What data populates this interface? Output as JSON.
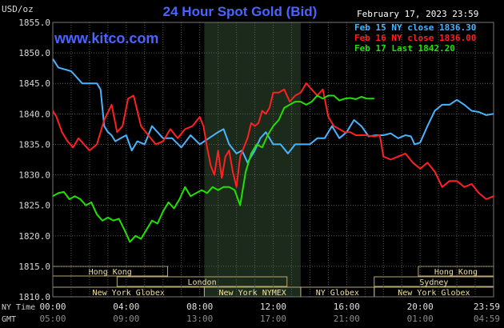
{
  "header": {
    "title": "24 Hour Spot Gold (Bid)",
    "url": "www.kitco.com",
    "unit": "USD/oz",
    "date": "February 17, 2023 23:59"
  },
  "legend": [
    {
      "label": "Feb 15 NY close 1836.30",
      "color": "#46b4ff"
    },
    {
      "label": "Feb 16 NY close 1836.00",
      "color": "#ff2020"
    },
    {
      "label": "Feb 17 Last 1842.20",
      "color": "#22e000"
    }
  ],
  "axis_rows": {
    "ny_time": "NY Time",
    "gmt": "GMT"
  },
  "sessions": [
    {
      "label": "Hong Kong",
      "start": 0,
      "end": 6.25,
      "row": 0
    },
    {
      "label": "Hong Kong",
      "start": 19.9,
      "end": 24,
      "row": 0
    },
    {
      "label": "London",
      "start": 3.5,
      "end": 12.75,
      "row": 1
    },
    {
      "label": "Sydney",
      "start": 17.5,
      "end": 24,
      "row": 1
    },
    {
      "label": "New York Globex",
      "start": 0,
      "end": 8.25,
      "row": 2
    },
    {
      "label": "New York NYMEX",
      "start": 8.25,
      "end": 13.5,
      "row": 2
    },
    {
      "label": "NY Globex",
      "start": 13.5,
      "end": 17.5,
      "row": 2
    },
    {
      "label": "New York Globex",
      "start": 17.5,
      "end": 24,
      "row": 2
    }
  ],
  "chart_data": {
    "type": "line",
    "ylim": [
      1810,
      1855
    ],
    "xlim": [
      0,
      24
    ],
    "yticks": [
      "1855.0",
      "1850.0",
      "1845.0",
      "1840.0",
      "1835.0",
      "1830.0",
      "1825.0",
      "1820.0",
      "1815.0",
      "1810.0"
    ],
    "xticks_ny": [
      "00:00",
      "04:00",
      "08:00",
      "12:00",
      "16:00",
      "20:00",
      "23:59"
    ],
    "xticks_gmt": [
      "05:00",
      "09:00",
      "13:00",
      "17:00",
      "21:00",
      "01:00",
      "04:59"
    ],
    "grid": true,
    "highlight_range": [
      8.25,
      13.5
    ],
    "legend_position": "top-right",
    "series": [
      {
        "name": "Feb 15 NY close 1836.30",
        "color": "#46b4ff",
        "x": [
          0,
          0.3,
          1,
          1.6,
          2.4,
          2.6,
          2.8,
          3,
          3.2,
          3.4,
          3.7,
          4,
          4.3,
          4.6,
          5,
          5.4,
          6,
          6.5,
          7,
          7.5,
          8,
          8.5,
          9,
          9.3,
          9.6,
          10,
          10.3,
          10.6,
          11,
          11.3,
          11.6,
          12,
          12.4,
          12.8,
          13.2,
          13.6,
          14,
          14.4,
          14.8,
          15.2,
          15.6,
          16,
          16.4,
          16.8,
          17.2,
          17.6,
          18,
          18.4,
          18.8,
          19.2,
          19.5,
          19.7,
          20,
          20.4,
          20.8,
          21.2,
          21.6,
          22,
          22.4,
          22.8,
          23.2,
          23.6,
          24
        ],
        "y": [
          1849,
          1847.6,
          1847,
          1845,
          1845,
          1844,
          1838,
          1837,
          1836.5,
          1835.5,
          1836,
          1836.5,
          1834,
          1835.5,
          1835,
          1838,
          1836,
          1836,
          1834.5,
          1836.5,
          1835,
          1836,
          1837,
          1837.5,
          1835,
          1833.5,
          1834,
          1832,
          1834,
          1836,
          1837,
          1835,
          1835,
          1833.5,
          1835,
          1835,
          1835,
          1836,
          1836,
          1838,
          1836,
          1837,
          1839,
          1838,
          1836.3,
          1836.5,
          1836.5,
          1836.8,
          1836,
          1836.5,
          1836.3,
          1835,
          1835.3,
          1838,
          1840.5,
          1841.5,
          1841.5,
          1842.3,
          1841.5,
          1840.5,
          1840.3,
          1839.8,
          1840
        ]
      },
      {
        "name": "Feb 16 NY close 1836.00",
        "color": "#ff2020",
        "x": [
          0,
          0.2,
          0.5,
          0.8,
          1.1,
          1.4,
          1.7,
          2,
          2.4,
          2.8,
          3.2,
          3.5,
          3.8,
          4.1,
          4.4,
          4.8,
          5.2,
          5.6,
          6,
          6.4,
          6.8,
          7.2,
          7.6,
          8,
          8.2,
          8.4,
          8.6,
          8.8,
          9,
          9.2,
          9.4,
          9.6,
          9.8,
          10,
          10.2,
          10.4,
          10.6,
          10.8,
          11,
          11.2,
          11.4,
          11.6,
          11.8,
          12,
          12.3,
          12.6,
          12.9,
          13.2,
          13.5,
          13.8,
          14.1,
          14.4,
          14.7,
          15,
          15.3,
          15.6,
          15.9,
          16.2,
          16.5,
          17,
          17.5,
          17.8,
          18,
          18.4,
          18.8,
          19.2,
          19.6,
          20,
          20.4,
          20.8,
          21.2,
          21.6,
          22,
          22.4,
          22.8,
          23.2,
          23.6,
          24
        ],
        "y": [
          1840.5,
          1839.5,
          1837,
          1835.5,
          1834.5,
          1836,
          1835,
          1834,
          1835,
          1839,
          1841.5,
          1837,
          1838,
          1842.5,
          1843,
          1838,
          1836.5,
          1835,
          1835.5,
          1837.5,
          1836,
          1837.5,
          1838,
          1839.5,
          1838,
          1834.5,
          1831.5,
          1830,
          1834,
          1829.5,
          1833,
          1834,
          1830.5,
          1828,
          1833,
          1834.5,
          1836,
          1838.5,
          1838,
          1838.5,
          1840.5,
          1840,
          1841,
          1843.5,
          1843.5,
          1844,
          1842,
          1843,
          1843.5,
          1845,
          1844,
          1843,
          1844,
          1839.5,
          1838,
          1837.5,
          1837,
          1837,
          1836.5,
          1836.5,
          1836.3,
          1836.5,
          1833,
          1832.5,
          1833,
          1833.5,
          1832,
          1831,
          1832,
          1830.5,
          1828,
          1829,
          1829,
          1828,
          1828.5,
          1827,
          1826,
          1826.5
        ]
      },
      {
        "name": "Feb 17 Last 1842.20",
        "color": "#22e000",
        "x": [
          0,
          0.3,
          0.6,
          0.9,
          1.2,
          1.5,
          1.8,
          2.1,
          2.4,
          2.7,
          3,
          3.3,
          3.6,
          3.9,
          4.2,
          4.5,
          4.8,
          5.1,
          5.4,
          5.7,
          6,
          6.3,
          6.6,
          6.9,
          7.2,
          7.5,
          7.8,
          8.1,
          8.4,
          8.7,
          9,
          9.3,
          9.6,
          9.9,
          10.2,
          10.5,
          10.8,
          11.1,
          11.4,
          11.7,
          12,
          12.3,
          12.6,
          12.9,
          13.2,
          13.5,
          13.8,
          14.1,
          14.4,
          14.7,
          15,
          15.3,
          15.6,
          15.9,
          16.2,
          16.5,
          16.8,
          17.1,
          17.5
        ],
        "y": [
          1826.5,
          1827,
          1827.2,
          1826,
          1826.5,
          1826,
          1825,
          1825.5,
          1823.5,
          1822.5,
          1823,
          1822.5,
          1822.8,
          1821,
          1819,
          1820,
          1819.5,
          1821,
          1822.5,
          1822,
          1824,
          1825.5,
          1824.5,
          1826,
          1828,
          1826.5,
          1827,
          1827.5,
          1827,
          1828,
          1827.5,
          1828,
          1828,
          1827.5,
          1825,
          1830.5,
          1833.5,
          1835,
          1834.5,
          1836.5,
          1838,
          1839,
          1841,
          1841.5,
          1842,
          1842,
          1841.5,
          1842,
          1843,
          1842.5,
          1843,
          1843,
          1842.2,
          1842.5,
          1842.6,
          1842.4,
          1842.8,
          1842.5,
          1842.5
        ]
      }
    ]
  }
}
